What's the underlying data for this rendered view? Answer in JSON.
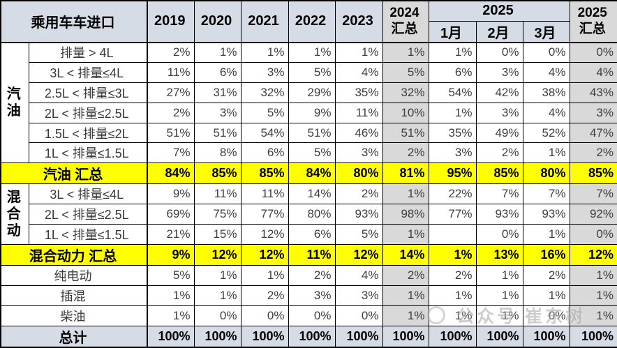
{
  "table": {
    "title": "乘用车车进口",
    "years": [
      "2019",
      "2020",
      "2021",
      "2022",
      "2023"
    ],
    "total_2024": "2024\n汇总",
    "group_2025": "2025",
    "months": [
      "1月",
      "2月",
      "3月"
    ],
    "total_2025": "2025\n汇总",
    "rows": [
      {
        "group": "汽油",
        "group_span": 6,
        "label": "排量 > 4L",
        "style": "normal",
        "values": [
          "2%",
          "1%",
          "1%",
          "1%",
          "1%",
          "1%",
          "1%",
          "0%",
          "0%",
          "0%"
        ]
      },
      {
        "label": "3L < 排量≤4L",
        "style": "normal",
        "values": [
          "11%",
          "6%",
          "3%",
          "5%",
          "4%",
          "5%",
          "6%",
          "3%",
          "4%",
          "4%"
        ]
      },
      {
        "label": "2.5L < 排量≤3L",
        "style": "normal",
        "values": [
          "27%",
          "31%",
          "32%",
          "29%",
          "35%",
          "32%",
          "54%",
          "42%",
          "38%",
          "43%"
        ]
      },
      {
        "label": "2L < 排量≤2.5L",
        "style": "normal",
        "values": [
          "2%",
          "3%",
          "5%",
          "9%",
          "11%",
          "10%",
          "1%",
          "3%",
          "4%",
          "3%"
        ]
      },
      {
        "label": "1.5L < 排量≤2L",
        "style": "normal",
        "values": [
          "51%",
          "51%",
          "54%",
          "51%",
          "46%",
          "51%",
          "35%",
          "49%",
          "52%",
          "47%"
        ]
      },
      {
        "label": "1L < 排量≤1.5L",
        "style": "normal",
        "values": [
          "7%",
          "8%",
          "6%",
          "5%",
          "3%",
          "2%",
          "3%",
          "2%",
          "1%",
          "2%"
        ]
      },
      {
        "label": "汽油 汇总",
        "style": "yellow",
        "full": true,
        "values": [
          "84%",
          "85%",
          "85%",
          "84%",
          "80%",
          "81%",
          "95%",
          "85%",
          "80%",
          "85%"
        ]
      },
      {
        "group": "混合动",
        "group_span": 3,
        "label": "3L < 排量≤4L",
        "style": "normal",
        "values": [
          "9%",
          "11%",
          "11%",
          "14%",
          "2%",
          "1%",
          "22%",
          "7%",
          "7%",
          "7%"
        ]
      },
      {
        "label": "2L < 排量≤2.5L",
        "style": "normal",
        "values": [
          "69%",
          "75%",
          "77%",
          "80%",
          "93%",
          "98%",
          "77%",
          "93%",
          "93%",
          "92%"
        ]
      },
      {
        "label": "1L < 排量≤1.5L",
        "style": "normal",
        "values": [
          "21%",
          "15%",
          "12%",
          "6%",
          "5%",
          "1%",
          "",
          "0%",
          "1%",
          "0%"
        ]
      },
      {
        "label": "混合动力 汇总",
        "style": "yellow",
        "full": true,
        "values": [
          "9%",
          "12%",
          "12%",
          "11%",
          "12%",
          "14%",
          "1%",
          "13%",
          "16%",
          "12%"
        ]
      },
      {
        "label": "纯电动",
        "style": "normal",
        "full": true,
        "values": [
          "5%",
          "1%",
          "1%",
          "2%",
          "4%",
          "2%",
          "2%",
          "1%",
          "2%",
          "1%"
        ]
      },
      {
        "label": "插混",
        "style": "normal",
        "full": true,
        "values": [
          "1%",
          "1%",
          "2%",
          "3%",
          "3%",
          "1%",
          "1%",
          "1%",
          "1%",
          "1%"
        ]
      },
      {
        "label": "柴油",
        "style": "normal",
        "full": true,
        "values": [
          "1%",
          "0%",
          "0%",
          "0%",
          "0%",
          "1%",
          "1%",
          "1%",
          "0%",
          "1%"
        ]
      },
      {
        "label": "总计",
        "style": "blue",
        "full": true,
        "values": [
          "100%",
          "100%",
          "100%",
          "100%",
          "100%",
          "100%",
          "100%",
          "100%",
          "100%",
          "100%"
        ]
      }
    ]
  },
  "watermark": {
    "label": "公众号 崔东树"
  },
  "colors": {
    "header_bg": "#D6DCE5",
    "summary_col_bg": "#D9D9D9",
    "highlight_row_bg": "#FFFF00",
    "total_row_bg": "#D6DCE5",
    "border": "#000000"
  }
}
